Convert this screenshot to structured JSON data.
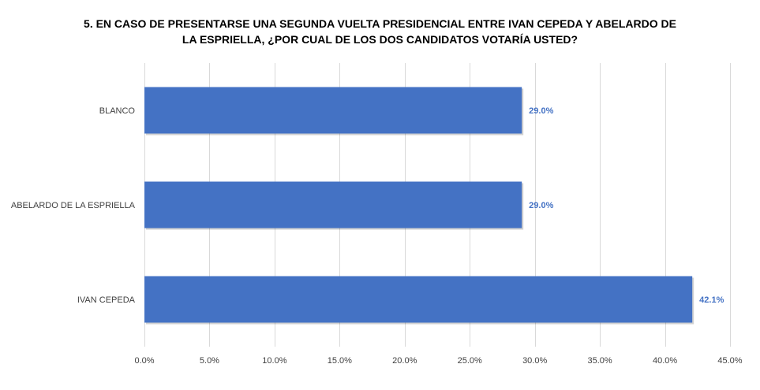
{
  "chart_data": {
    "type": "bar",
    "orientation": "horizontal",
    "title_lines": [
      "5. EN CASO DE PRESENTARSE UNA SEGUNDA VUELTA PRESIDENCIAL ENTRE IVAN CEPEDA Y ABELARDO DE",
      "LA ESPRIELLA, ¿POR CUAL DE LOS DOS CANDIDATOS VOTARÍA USTED?"
    ],
    "categories": [
      "BLANCO",
      "ABELARDO DE LA ESPRIELLA",
      "IVAN CEPEDA"
    ],
    "values": [
      29.0,
      29.0,
      42.1
    ],
    "data_labels": [
      "29.0%",
      "29.0%",
      "42.1%"
    ],
    "xlim": [
      0,
      45
    ],
    "x_ticks": [
      0,
      5,
      10,
      15,
      20,
      25,
      30,
      35,
      40,
      45
    ],
    "x_tick_labels": [
      "0.0%",
      "5.0%",
      "10.0%",
      "15.0%",
      "20.0%",
      "25.0%",
      "30.0%",
      "35.0%",
      "40.0%",
      "45.0%"
    ],
    "grid": "vertical",
    "legend": "none",
    "bar_color": "#4472C4",
    "label_color": "#4472C4",
    "grid_color": "#D9D9D9"
  }
}
